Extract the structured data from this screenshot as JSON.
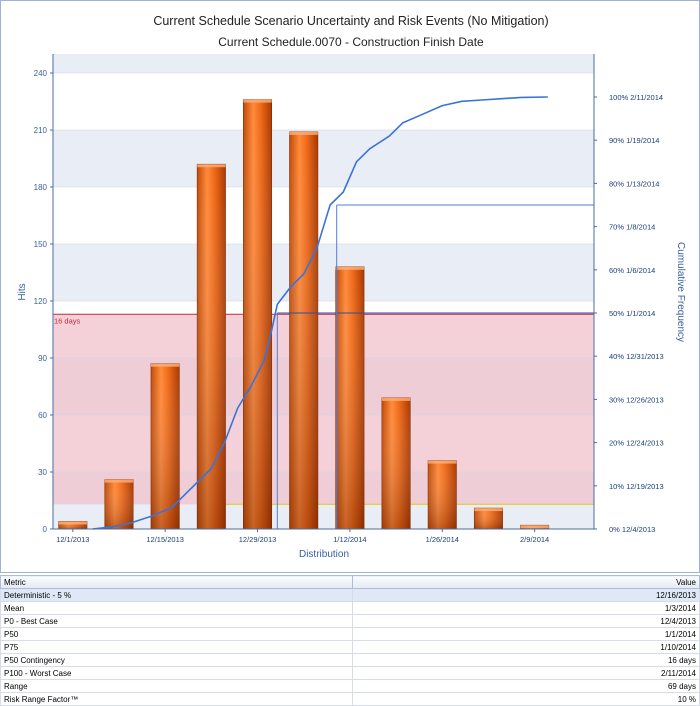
{
  "chart_data": {
    "type": "bar",
    "title": "Current Schedule Scenario Uncertainty and Risk Events (No Mitigation)",
    "subtitle": "Current Schedule.0070 - Construction Finish Date",
    "xlabel": "Distribution",
    "ylabel": "Hits",
    "y2label": "Cumulative Frequency",
    "ylim": [
      0,
      240
    ],
    "yticks": [
      0,
      30,
      60,
      90,
      120,
      150,
      180,
      210,
      240
    ],
    "xlim": [
      "2013-11-28",
      "2014-02-18"
    ],
    "xticks": [
      {
        "date": "2013-12-01",
        "label": "12/1/2013"
      },
      {
        "date": "2013-12-15",
        "label": "12/15/2013"
      },
      {
        "date": "2013-12-29",
        "label": "12/29/2013"
      },
      {
        "date": "2014-01-12",
        "label": "1/12/2014"
      },
      {
        "date": "2014-01-26",
        "label": "1/26/2014"
      },
      {
        "date": "2014-02-09",
        "label": "2/9/2014"
      }
    ],
    "bars": [
      {
        "date": "2013-12-01",
        "value": 4
      },
      {
        "date": "2013-12-08",
        "value": 26
      },
      {
        "date": "2013-12-15",
        "value": 87
      },
      {
        "date": "2013-12-22",
        "value": 192
      },
      {
        "date": "2013-12-29",
        "value": 226
      },
      {
        "date": "2014-01-05",
        "value": 209
      },
      {
        "date": "2014-01-12",
        "value": 138
      },
      {
        "date": "2014-01-19",
        "value": 69
      },
      {
        "date": "2014-01-26",
        "value": 36
      },
      {
        "date": "2014-02-02",
        "value": 11
      },
      {
        "date": "2014-02-09",
        "value": 2
      }
    ],
    "right_axis_labels": [
      {
        "pct": 0,
        "label": "0% 12/4/2013"
      },
      {
        "pct": 10,
        "label": "10% 12/19/2013"
      },
      {
        "pct": 20,
        "label": "20% 12/24/2013"
      },
      {
        "pct": 30,
        "label": "30% 12/26/2013"
      },
      {
        "pct": 40,
        "label": "40% 12/31/2013"
      },
      {
        "pct": 50,
        "label": "50% 1/1/2014"
      },
      {
        "pct": 60,
        "label": "60% 1/6/2014"
      },
      {
        "pct": 70,
        "label": "70% 1/8/2014"
      },
      {
        "pct": 80,
        "label": "80% 1/13/2014"
      },
      {
        "pct": 90,
        "label": "90% 1/19/2014"
      },
      {
        "pct": 100,
        "label": "100% 2/11/2014"
      }
    ],
    "cumulative": [
      {
        "date": "2013-12-04",
        "pct": 0
      },
      {
        "date": "2013-12-07",
        "pct": 0.5
      },
      {
        "date": "2013-12-10",
        "pct": 1.5
      },
      {
        "date": "2013-12-13",
        "pct": 3
      },
      {
        "date": "2013-12-16",
        "pct": 5
      },
      {
        "date": "2013-12-18",
        "pct": 8
      },
      {
        "date": "2013-12-20",
        "pct": 11
      },
      {
        "date": "2013-12-22",
        "pct": 14
      },
      {
        "date": "2013-12-24",
        "pct": 20
      },
      {
        "date": "2013-12-26",
        "pct": 28
      },
      {
        "date": "2013-12-28",
        "pct": 33
      },
      {
        "date": "2013-12-30",
        "pct": 39
      },
      {
        "date": "2013-12-31",
        "pct": 45
      },
      {
        "date": "2014-01-01",
        "pct": 52
      },
      {
        "date": "2014-01-03",
        "pct": 56
      },
      {
        "date": "2014-01-05",
        "pct": 59
      },
      {
        "date": "2014-01-07",
        "pct": 65
      },
      {
        "date": "2014-01-09",
        "pct": 75
      },
      {
        "date": "2014-01-11",
        "pct": 78
      },
      {
        "date": "2014-01-13",
        "pct": 85
      },
      {
        "date": "2014-01-15",
        "pct": 88
      },
      {
        "date": "2014-01-18",
        "pct": 91
      },
      {
        "date": "2014-01-20",
        "pct": 94
      },
      {
        "date": "2014-01-23",
        "pct": 96
      },
      {
        "date": "2014-01-26",
        "pct": 98
      },
      {
        "date": "2014-01-29",
        "pct": 99
      },
      {
        "date": "2014-02-01",
        "pct": 99.3
      },
      {
        "date": "2014-02-04",
        "pct": 99.6
      },
      {
        "date": "2014-02-07",
        "pct": 99.9
      },
      {
        "date": "2014-02-11",
        "pct": 100
      }
    ],
    "p50_marker": {
      "date": "2014-01-01",
      "pct": 50
    },
    "p75_marker": {
      "date": "2014-01-10",
      "pct": 75
    },
    "contingency_band": {
      "label": "16 days",
      "from_hits": 13,
      "to_hits": 113
    },
    "yellow_line_hits": 13,
    "grid": true,
    "colors": {
      "bar_light": "#ff8a3a",
      "bar_dark": "#b33c00",
      "curve": "#3b73d9",
      "band": "#f0c2cb",
      "band_edge": "#c8283d",
      "stripe": "#e9edf5",
      "axis": "#4a6da0",
      "yellow": "#e6c832"
    }
  },
  "table": {
    "headers": {
      "metric": "Metric",
      "value": "Value"
    },
    "rows": [
      {
        "metric": "Deterministic - 5 %",
        "value": "12/16/2013"
      },
      {
        "metric": "Mean",
        "value": "1/3/2014"
      },
      {
        "metric": "P0 - Best Case",
        "value": "12/4/2013"
      },
      {
        "metric": "P50",
        "value": "1/1/2014"
      },
      {
        "metric": "P75",
        "value": "1/10/2014"
      },
      {
        "metric": "P50 Contingency",
        "value": "16 days"
      },
      {
        "metric": "P100 - Worst Case",
        "value": "2/11/2014"
      },
      {
        "metric": "Range",
        "value": "69 days"
      },
      {
        "metric": "Risk Range Factor™",
        "value": "10 %"
      }
    ]
  }
}
